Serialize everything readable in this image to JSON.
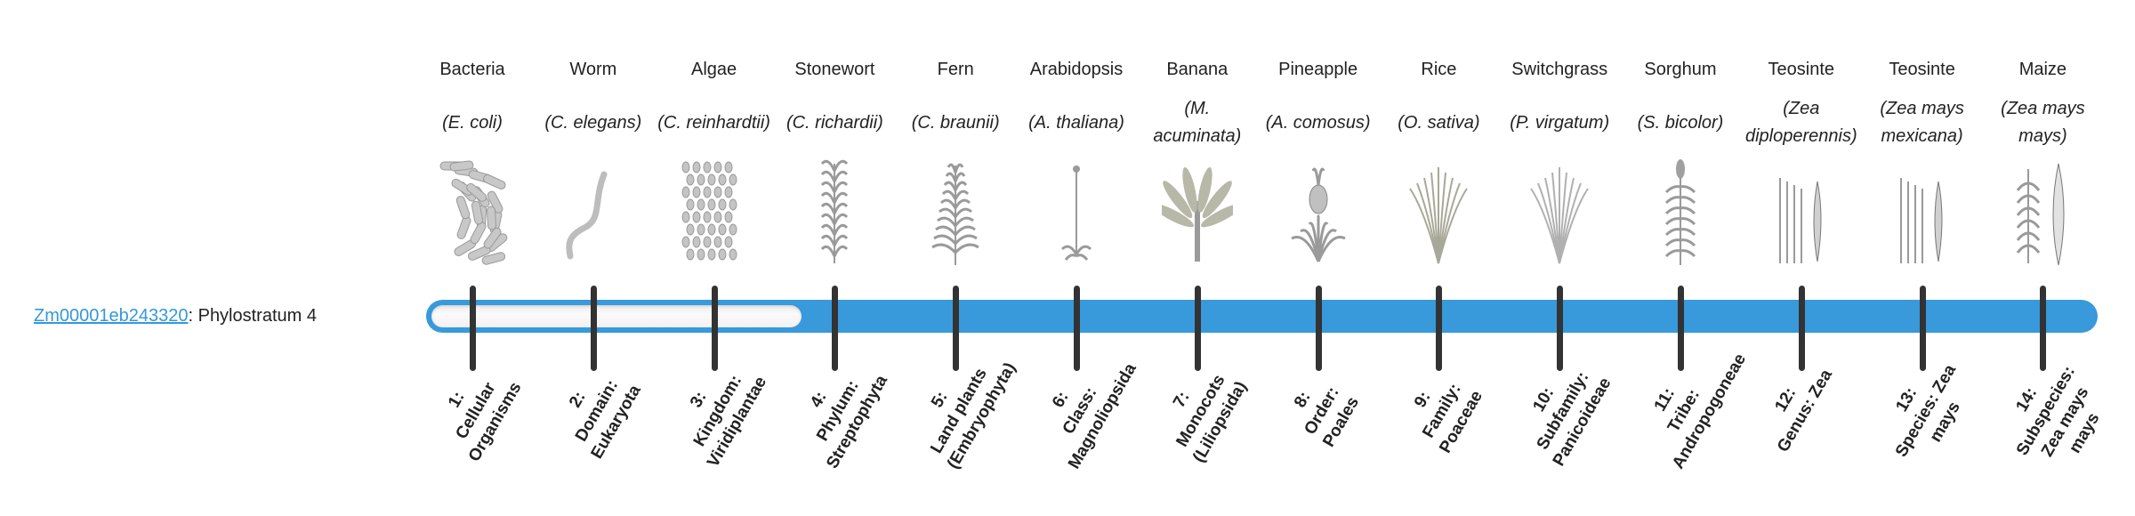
{
  "gene": {
    "id": "Zm00001eb243320",
    "suffix": ": Phylostratum 4",
    "phylostratum": 4
  },
  "colors": {
    "accent": "#3899db",
    "tick": "#333333",
    "empty": "#f4f4f4"
  },
  "columns": [
    {
      "common": "Bacteria",
      "scientific": "(E. coli)",
      "icon": "bacteria-icon",
      "num": "1:",
      "rank": "Cellular Organisms"
    },
    {
      "common": "Worm",
      "scientific": "(C. elegans)",
      "icon": "worm-icon",
      "num": "2:",
      "rank": "Domain: Eukaryota"
    },
    {
      "common": "Algae",
      "scientific": "(C. reinhardtii)",
      "icon": "algae-icon",
      "num": "3:",
      "rank": "Kingdom: Viridiplantae"
    },
    {
      "common": "Stonewort",
      "scientific": "(C. richardii)",
      "icon": "stonewort-icon",
      "num": "4:",
      "rank": "Phylum: Streptophyta"
    },
    {
      "common": "Fern",
      "scientific": "(C. braunii)",
      "icon": "fern-icon",
      "num": "5:",
      "rank": "Land plants (Embryophyta)"
    },
    {
      "common": "Arabidopsis",
      "scientific": "(A. thaliana)",
      "icon": "arabidopsis-icon",
      "num": "6:",
      "rank": "Class: Magnoliopsida"
    },
    {
      "common": "Banana",
      "scientific": "(M. acuminata)",
      "icon": "banana-icon",
      "num": "7:",
      "rank": "Monocots (Liliopsida)"
    },
    {
      "common": "Pineapple",
      "scientific": "(A. comosus)",
      "icon": "pineapple-icon",
      "num": "8:",
      "rank": "Order: Poales"
    },
    {
      "common": "Rice",
      "scientific": "(O. sativa)",
      "icon": "rice-icon",
      "num": "9:",
      "rank": "Family: Poaceae"
    },
    {
      "common": "Switchgrass",
      "scientific": "(P. virgatum)",
      "icon": "switchgrass-icon",
      "num": "10:",
      "rank": "Subfamily: Panicoideae"
    },
    {
      "common": "Sorghum",
      "scientific": "(S. bicolor)",
      "icon": "sorghum-icon",
      "num": "11:",
      "rank": "Tribe: Andropogoneae"
    },
    {
      "common": "Teosinte",
      "scientific": "(Zea diploperennis)",
      "icon": "teosinte-icon",
      "num": "12:",
      "rank": "Genus: Zea"
    },
    {
      "common": "Teosinte",
      "scientific": "(Zea mays mexicana)",
      "icon": "teosinte-icon",
      "num": "13:",
      "rank": "Species: Zea mays"
    },
    {
      "common": "Maize",
      "scientific": "(Zea mays mays)",
      "icon": "maize-icon",
      "num": "14:",
      "rank": "Subspecies: Zea mays mays"
    }
  ]
}
